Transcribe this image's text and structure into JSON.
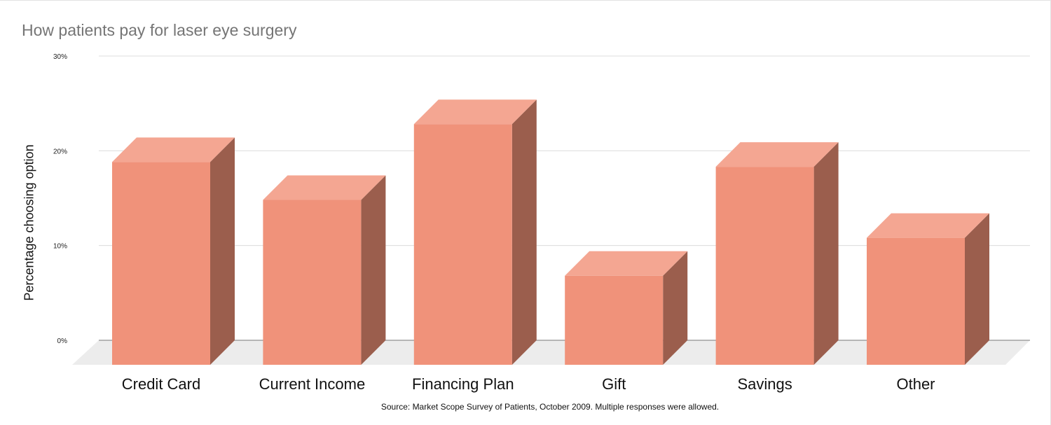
{
  "title": "How patients pay for laser eye surgery",
  "source_note": "Source: Market Scope Survey of Patients, October 2009. Multiple responses were allowed.",
  "colors": {
    "front": "#f0927a",
    "top": "#f4a692",
    "side": "#9b5e4d",
    "floor": "#ececec",
    "grid": "#dcdcdc"
  },
  "chart_data": {
    "type": "bar",
    "style": "3d",
    "title": "How patients pay for laser eye surgery",
    "ylabel": "Percentage choosing option",
    "xlabel": "",
    "categories": [
      "Credit Card",
      "Current Income",
      "Financing Plan",
      "Gift",
      "Savings",
      "Other"
    ],
    "values": [
      21.4,
      17.4,
      25.4,
      9.4,
      20.9,
      13.4
    ],
    "ylim": [
      0,
      30
    ],
    "yticks": [
      "0%",
      "10%",
      "20%",
      "30%"
    ],
    "grid": true,
    "legend": "none"
  }
}
